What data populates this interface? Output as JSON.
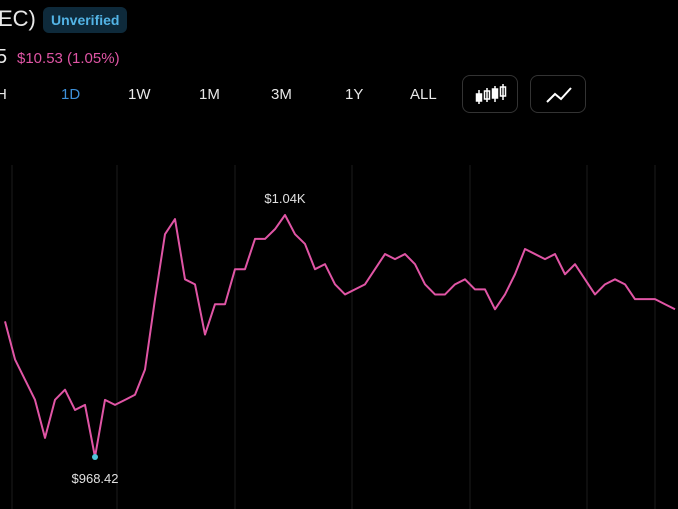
{
  "header": {
    "title": "EC)",
    "badge": "Unverified",
    "price": "5",
    "change": "$10.53 (1.05%)"
  },
  "tabs": [
    "H",
    "1D",
    "1W",
    "1M",
    "3M",
    "1Y",
    "ALL"
  ],
  "chart_data": {
    "type": "line",
    "color": "#e055a5",
    "values": [
      1008.7,
      997.4,
      991.4,
      985.4,
      974.1,
      985.4,
      988.4,
      982.4,
      983.9,
      968.42,
      985.4,
      983.9,
      985.4,
      986.9,
      994.4,
      1015.3,
      1034.6,
      1039.1,
      1021.2,
      1019.7,
      1004.8,
      1013.8,
      1013.8,
      1024.2,
      1024.2,
      1033.2,
      1033.2,
      1036.1,
      1040.3,
      1034.6,
      1031.7,
      1024.2,
      1025.7,
      1019.7,
      1016.7,
      1018.2,
      1019.7,
      1024.2,
      1028.7,
      1027.2,
      1028.7,
      1025.7,
      1019.7,
      1016.7,
      1016.7,
      1019.7,
      1021.2,
      1018.2,
      1018.2,
      1012.3,
      1016.7,
      1022.7,
      1030.2,
      1028.7,
      1027.2,
      1028.7,
      1022.7,
      1025.7,
      1021.2,
      1016.7,
      1019.7,
      1021.2,
      1019.7,
      1015.3,
      1015.3,
      1015.3,
      1013.8,
      1012.3
    ],
    "max_label": "$1.04K",
    "min_label": "$968.42"
  }
}
